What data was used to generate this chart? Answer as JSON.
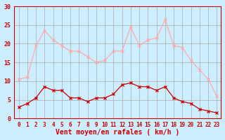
{
  "hours": [
    0,
    1,
    2,
    3,
    4,
    5,
    6,
    7,
    8,
    9,
    10,
    11,
    12,
    13,
    14,
    15,
    16,
    17,
    18,
    19,
    20,
    21,
    22,
    23
  ],
  "wind_avg": [
    3,
    4,
    5.5,
    8.5,
    7.5,
    7.5,
    5.5,
    5.5,
    4.5,
    5.5,
    5.5,
    6.5,
    9,
    9.5,
    8.5,
    8.5,
    7.5,
    8.5,
    5.5,
    4.5,
    4,
    2.5,
    2,
    1.5
  ],
  "wind_gust": [
    10.5,
    11,
    19.5,
    23.5,
    21,
    19.5,
    18,
    18,
    16.5,
    15,
    15.5,
    18,
    18,
    24.5,
    19.5,
    21,
    21.5,
    26.5,
    19.5,
    19,
    15.5,
    13,
    10.5,
    6
  ],
  "xlabel": "Vent moyen/en rafales ( km/h )",
  "ylim": [
    0,
    30
  ],
  "yticks": [
    0,
    5,
    10,
    15,
    20,
    25,
    30
  ],
  "bg_color": "#cceeff",
  "grid_color": "#aaaaaa",
  "line_avg_color": "#cc0000",
  "line_gust_color": "#ffaaaa"
}
